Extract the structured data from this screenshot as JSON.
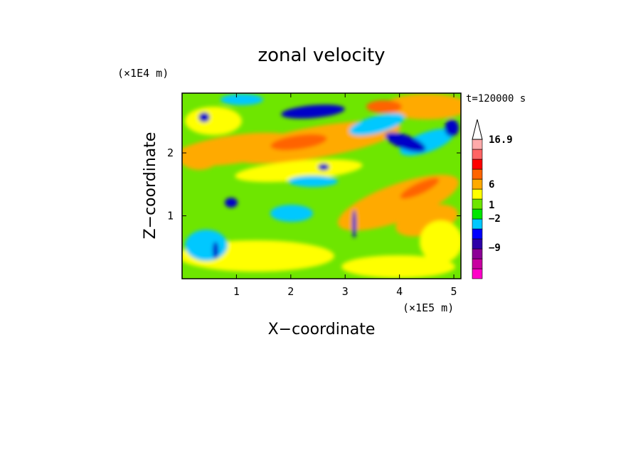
{
  "chart_data": {
    "type": "heatmap",
    "title": "zonal velocity",
    "xlabel": "X−coordinate",
    "ylabel": "Z−coordinate",
    "x_unit": "(×1E5 m)",
    "y_unit": "(×1E4 m)",
    "time_label": "t=120000 s",
    "xlim": [
      0,
      5.13
    ],
    "ylim": [
      0,
      2.95
    ],
    "x_ticks": [
      "1",
      "2",
      "3",
      "4",
      "5"
    ],
    "y_ticks": [
      "1",
      "2"
    ],
    "grid": false,
    "colorbar": {
      "tick_labels": [
        "16.9",
        "6",
        "1",
        "−2",
        "−9"
      ],
      "levels": [
        {
          "color": "#ff00c8"
        },
        {
          "color": "#c800a0"
        },
        {
          "color": "#8c0096"
        },
        {
          "color": "#2d00a8"
        },
        {
          "color": "#0000ff"
        },
        {
          "color": "#00c8ff"
        },
        {
          "color": "#00e600"
        },
        {
          "color": "#6ee600"
        },
        {
          "color": "#ffff00"
        },
        {
          "color": "#ffaa00"
        },
        {
          "color": "#ff6400"
        },
        {
          "color": "#ff0000"
        },
        {
          "color": "#ff6464"
        },
        {
          "color": "#ffaaaa"
        },
        {
          "color": "#ffffff"
        }
      ]
    },
    "palette": {
      "strong_negative": "#0000c8",
      "weak_negative": "#00c8ff",
      "near_zero": "#00e600",
      "weak_positive": "#ffff00",
      "positive": "#ffaa00",
      "strong_positive": "#ff6400"
    }
  }
}
